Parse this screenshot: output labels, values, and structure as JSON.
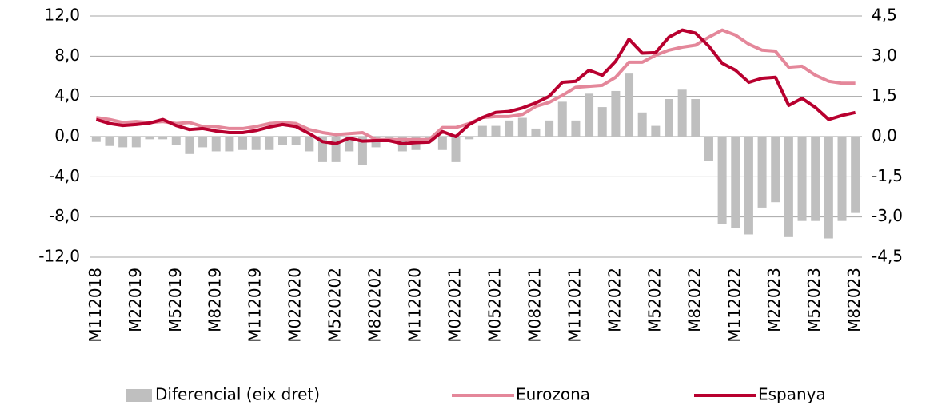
{
  "chart_data": {
    "type": "bar-line",
    "categories": [
      "M112018",
      null,
      null,
      "M22019",
      null,
      null,
      "M52019",
      null,
      null,
      "M82019",
      null,
      null,
      "M112019",
      null,
      null,
      "M022020",
      null,
      null,
      "M520202",
      null,
      null,
      "M820202",
      null,
      null,
      "M112020",
      null,
      null,
      "M022021",
      null,
      null,
      "M052021",
      null,
      null,
      "M082021",
      null,
      null,
      "M112021",
      null,
      null,
      "M22022",
      null,
      null,
      "M52022",
      null,
      null,
      "M82022",
      null,
      null,
      "M112022",
      null,
      null,
      "M22023",
      null,
      null,
      "M52023",
      null,
      null,
      "M82023"
    ],
    "series": [
      {
        "name": "Diferencial (eix dret)",
        "type": "bar",
        "axis": "y2",
        "color": "#bfbfbf",
        "values": [
          -0.2,
          -0.35,
          -0.4,
          -0.4,
          -0.1,
          -0.1,
          -0.3,
          -0.65,
          -0.4,
          -0.55,
          -0.55,
          -0.5,
          -0.5,
          -0.5,
          -0.3,
          -0.3,
          -0.55,
          -0.95,
          -0.95,
          -0.55,
          -1.05,
          -0.4,
          -0.1,
          -0.55,
          -0.5,
          -0.2,
          -0.5,
          -0.95,
          -0.1,
          0.4,
          0.4,
          0.6,
          0.7,
          0.3,
          0.6,
          1.3,
          0.6,
          1.6,
          1.1,
          1.7,
          2.35,
          0.9,
          0.4,
          1.4,
          1.75,
          1.4,
          -0.9,
          -3.25,
          -3.4,
          -3.65,
          -2.65,
          -2.45,
          -3.75,
          -3.15,
          -3.15,
          -3.8,
          -3.15,
          -2.85
        ]
      },
      {
        "name": "Eurozona",
        "type": "line",
        "color": "#e4879a",
        "values": [
          1.9,
          1.7,
          1.4,
          1.5,
          1.4,
          1.5,
          1.3,
          1.4,
          1.0,
          1.0,
          0.8,
          0.8,
          1.0,
          1.3,
          1.4,
          1.3,
          0.7,
          0.4,
          0.2,
          0.3,
          0.4,
          -0.3,
          -0.3,
          -0.3,
          -0.3,
          -0.3,
          0.9,
          0.9,
          1.3,
          1.9,
          2.0,
          2.0,
          2.2,
          3.0,
          3.4,
          4.1,
          4.9,
          5.0,
          5.1,
          5.9,
          7.4,
          7.4,
          8.1,
          8.6,
          8.9,
          9.1,
          9.9,
          10.6,
          10.1,
          9.2,
          8.6,
          8.5,
          6.9,
          7.0,
          6.1,
          5.5,
          5.3,
          5.3
        ]
      },
      {
        "name": "Espanya",
        "type": "line",
        "color": "#b8002f",
        "values": [
          1.7,
          1.3,
          1.1,
          1.2,
          1.35,
          1.7,
          1.1,
          0.7,
          0.8,
          0.55,
          0.4,
          0.4,
          0.6,
          0.95,
          1.2,
          1.0,
          0.3,
          -0.5,
          -0.7,
          -0.15,
          -0.45,
          -0.4,
          -0.4,
          -0.7,
          -0.6,
          -0.55,
          0.5,
          0.0,
          1.2,
          1.9,
          2.4,
          2.5,
          2.85,
          3.35,
          4.0,
          5.4,
          5.5,
          6.6,
          6.1,
          7.5,
          9.7,
          8.3,
          8.35,
          9.9,
          10.6,
          10.3,
          9.0,
          7.3,
          6.6,
          5.4,
          5.8,
          5.9,
          3.1,
          3.8,
          2.9,
          1.7,
          2.1,
          2.4
        ]
      }
    ],
    "ylim": [
      -12,
      12
    ],
    "yticks": [
      {
        "value": -12,
        "label": "-12,0"
      },
      {
        "value": -8,
        "label": "-8,0"
      },
      {
        "value": -4,
        "label": "-4,0"
      },
      {
        "value": 0,
        "label": "0,0"
      },
      {
        "value": 4,
        "label": "4,0"
      },
      {
        "value": 8,
        "label": "8,0"
      },
      {
        "value": 12,
        "label": "12,0"
      }
    ],
    "y2lim": [
      -4.5,
      4.5
    ],
    "y2ticks": [
      {
        "value": -4.5,
        "label": "-4,5"
      },
      {
        "value": -3,
        "label": "-3,0"
      },
      {
        "value": -1.5,
        "label": "-1,5"
      },
      {
        "value": 0,
        "label": "0,0"
      },
      {
        "value": 1.5,
        "label": "1,5"
      },
      {
        "value": 3,
        "label": "3,0"
      },
      {
        "value": 4.5,
        "label": "4,5"
      }
    ],
    "grid": true,
    "legend": "bottom"
  }
}
